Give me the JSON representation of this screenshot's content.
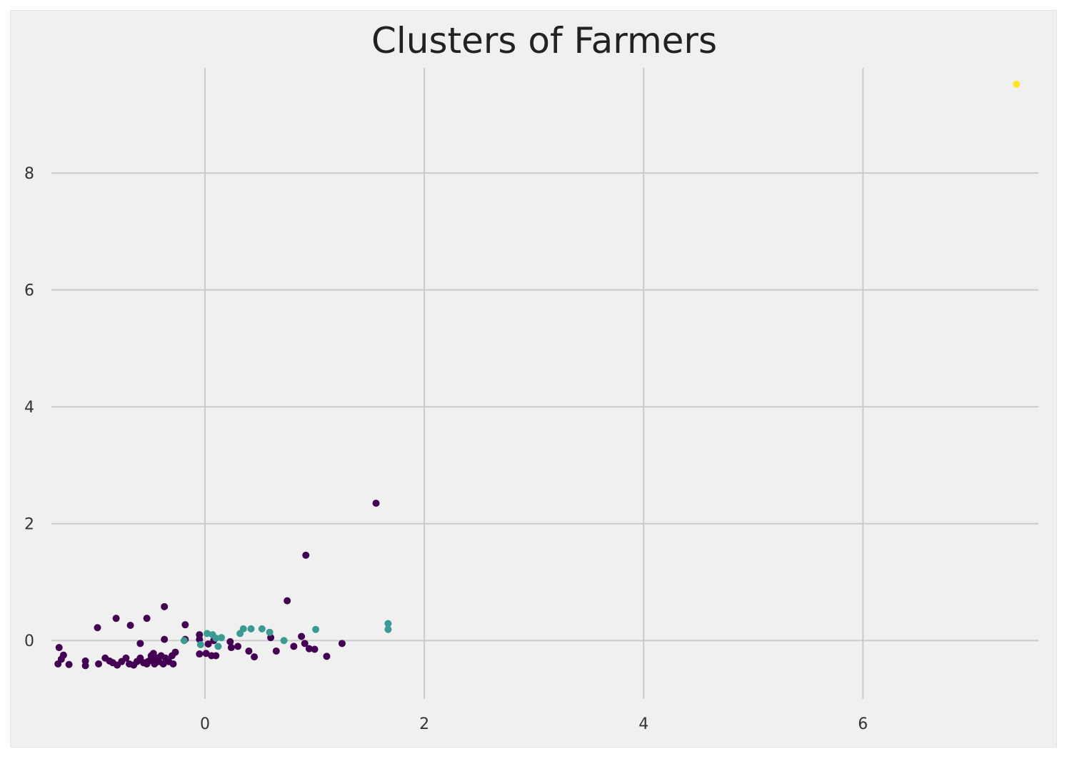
{
  "chart_data": {
    "type": "scatter",
    "title": "Clusters of Farmers",
    "xlabel": "",
    "ylabel": "",
    "xlim": [
      -1.4,
      7.6
    ],
    "ylim": [
      -1.0,
      9.8
    ],
    "xticks": [
      0,
      2,
      4,
      6
    ],
    "yticks": [
      0,
      2,
      4,
      6,
      8
    ],
    "xtick_labels": [
      "0",
      "2",
      "4",
      "6"
    ],
    "ytick_labels": [
      "0",
      "2",
      "4",
      "6",
      "8"
    ],
    "grid": true,
    "legend": "none",
    "colors": {
      "background": "#f0f0f0",
      "grid": "#cbcbcb",
      "cluster_0": "#440154",
      "cluster_1": "#3b9b93",
      "cluster_2": "#fde725"
    },
    "series": [
      {
        "cluster": 0,
        "color": "#440154",
        "points": [
          [
            -1.33,
            -0.12
          ],
          [
            -1.29,
            -0.25
          ],
          [
            -1.31,
            -0.32
          ],
          [
            -1.34,
            -0.4
          ],
          [
            -1.24,
            -0.41
          ],
          [
            -1.09,
            -0.35
          ],
          [
            -1.09,
            -0.43
          ],
          [
            -0.97,
            -0.4
          ],
          [
            -0.91,
            -0.3
          ],
          [
            -0.87,
            -0.35
          ],
          [
            -0.84,
            -0.38
          ],
          [
            -0.8,
            -0.42
          ],
          [
            -0.76,
            -0.36
          ],
          [
            -0.72,
            -0.3
          ],
          [
            -0.69,
            -0.4
          ],
          [
            -0.65,
            -0.42
          ],
          [
            -0.62,
            -0.36
          ],
          [
            -0.59,
            -0.3
          ],
          [
            -0.56,
            -0.38
          ],
          [
            -0.53,
            -0.4
          ],
          [
            -0.5,
            -0.34
          ],
          [
            -0.49,
            -0.26
          ],
          [
            -0.47,
            -0.22
          ],
          [
            -0.46,
            -0.4
          ],
          [
            -0.43,
            -0.3
          ],
          [
            -0.42,
            -0.36
          ],
          [
            -0.4,
            -0.26
          ],
          [
            -0.38,
            -0.4
          ],
          [
            -0.36,
            -0.3
          ],
          [
            -0.33,
            -0.36
          ],
          [
            -0.3,
            -0.26
          ],
          [
            -0.29,
            -0.4
          ],
          [
            -0.27,
            -0.2
          ],
          [
            -0.52,
            -0.36
          ],
          [
            -0.44,
            -0.32
          ],
          [
            -0.98,
            0.22
          ],
          [
            -0.81,
            0.38
          ],
          [
            -0.68,
            0.26
          ],
          [
            -0.53,
            0.38
          ],
          [
            -0.37,
            0.58
          ],
          [
            -0.18,
            0.27
          ],
          [
            -0.59,
            -0.05
          ],
          [
            -0.37,
            0.02
          ],
          [
            -0.18,
            0.02
          ],
          [
            -0.05,
            0.02
          ],
          [
            -0.05,
            0.1
          ],
          [
            0.03,
            -0.06
          ],
          [
            0.08,
            0.0
          ],
          [
            -0.05,
            -0.23
          ],
          [
            0.01,
            -0.22
          ],
          [
            0.06,
            -0.26
          ],
          [
            0.1,
            -0.26
          ],
          [
            0.23,
            -0.02
          ],
          [
            0.24,
            -0.12
          ],
          [
            0.3,
            -0.1
          ],
          [
            0.4,
            -0.18
          ],
          [
            0.45,
            -0.28
          ],
          [
            0.6,
            0.05
          ],
          [
            0.65,
            -0.18
          ],
          [
            0.81,
            -0.1
          ],
          [
            0.88,
            0.07
          ],
          [
            0.91,
            -0.05
          ],
          [
            0.95,
            -0.14
          ],
          [
            1.0,
            -0.15
          ],
          [
            1.11,
            -0.27
          ],
          [
            1.25,
            -0.05
          ],
          [
            0.75,
            0.68
          ],
          [
            0.92,
            1.46
          ],
          [
            1.56,
            2.35
          ]
        ]
      },
      {
        "cluster": 1,
        "color": "#3b9b93",
        "points": [
          [
            -0.19,
            0.0
          ],
          [
            -0.04,
            -0.07
          ],
          [
            0.02,
            0.12
          ],
          [
            0.07,
            0.1
          ],
          [
            0.1,
            0.04
          ],
          [
            0.12,
            -0.1
          ],
          [
            0.15,
            0.05
          ],
          [
            0.32,
            0.12
          ],
          [
            0.35,
            0.2
          ],
          [
            0.42,
            0.2
          ],
          [
            0.52,
            0.2
          ],
          [
            0.59,
            0.14
          ],
          [
            0.72,
            0.0
          ],
          [
            1.01,
            0.19
          ],
          [
            1.67,
            0.19
          ],
          [
            1.67,
            0.29
          ]
        ]
      },
      {
        "cluster": 2,
        "color": "#fde725",
        "points": [
          [
            7.4,
            9.52
          ]
        ]
      }
    ]
  }
}
